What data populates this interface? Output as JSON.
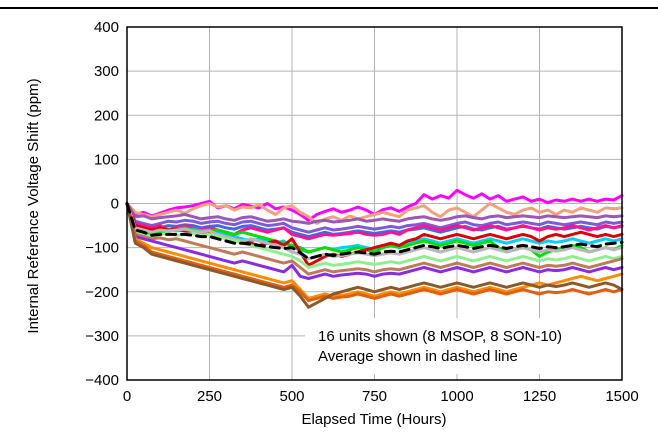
{
  "chart_data": {
    "type": "line",
    "title": "",
    "xlabel": "Elapsed Time (Hours)",
    "ylabel": "Internal Reference Voltage Shift (ppm)",
    "xlim": [
      0,
      1500
    ],
    "ylim": [
      -400,
      400
    ],
    "xticks": [
      0,
      250,
      500,
      750,
      1000,
      1250,
      1500
    ],
    "yticks": [
      -400,
      -300,
      -200,
      -100,
      0,
      100,
      200,
      300,
      400
    ],
    "xtick_labels": [
      "0",
      "250",
      "500",
      "750",
      "1000",
      "1250",
      "1500"
    ],
    "ytick_labels": [
      "−400",
      "−300",
      "−200",
      "−100",
      "0",
      "100",
      "200",
      "300",
      "400"
    ],
    "grid": true,
    "annotations": [
      "16 units shown (8 MSOP, 8 SON-10)",
      "Average shown in dashed line"
    ],
    "x": [
      0,
      25,
      50,
      75,
      100,
      125,
      150,
      175,
      200,
      225,
      250,
      275,
      300,
      325,
      350,
      375,
      400,
      425,
      450,
      475,
      500,
      525,
      550,
      575,
      600,
      625,
      650,
      675,
      700,
      725,
      750,
      775,
      800,
      825,
      850,
      875,
      900,
      925,
      950,
      975,
      1000,
      1025,
      1050,
      1075,
      1100,
      1125,
      1150,
      1175,
      1200,
      1225,
      1250,
      1275,
      1300,
      1325,
      1350,
      1375,
      1400,
      1425,
      1450,
      1475,
      1500
    ],
    "series": [
      {
        "color": "#ff00ff",
        "style": "solid",
        "values": [
          0,
          -25,
          -20,
          -28,
          -22,
          -15,
          -10,
          -8,
          -5,
          0,
          5,
          -10,
          -5,
          -12,
          -2,
          -6,
          -10,
          0,
          -12,
          -8,
          -15,
          -25,
          -38,
          -25,
          -18,
          -12,
          -20,
          -15,
          -8,
          -15,
          -25,
          -14,
          -10,
          -18,
          -8,
          0,
          20,
          10,
          18,
          12,
          30,
          20,
          12,
          22,
          10,
          18,
          5,
          10,
          15,
          5,
          10,
          2,
          8,
          5,
          10,
          5,
          10,
          5,
          10,
          8,
          18
        ]
      },
      {
        "color": "#f4a07e",
        "style": "solid",
        "values": [
          0,
          -20,
          -25,
          -30,
          -25,
          -20,
          -15,
          -22,
          -12,
          -5,
          0,
          -8,
          -5,
          -15,
          -8,
          -10,
          -2,
          -15,
          -25,
          -10,
          -5,
          -20,
          -30,
          -45,
          -35,
          -30,
          -38,
          -28,
          -35,
          -30,
          -25,
          -20,
          -25,
          -30,
          -15,
          -10,
          -5,
          -20,
          -30,
          -15,
          -10,
          -20,
          -30,
          -15,
          0,
          -10,
          -20,
          -25,
          -15,
          -10,
          -20,
          -15,
          -25,
          -15,
          -20,
          -10,
          -15,
          -20,
          -10,
          -12,
          -10
        ]
      },
      {
        "color": "#9b59b6",
        "style": "solid",
        "values": [
          0,
          -30,
          -28,
          -35,
          -32,
          -30,
          -28,
          -25,
          -30,
          -35,
          -32,
          -30,
          -35,
          -38,
          -32,
          -30,
          -35,
          -40,
          -38,
          -35,
          -40,
          -42,
          -45,
          -40,
          -38,
          -42,
          -40,
          -38,
          -35,
          -40,
          -38,
          -35,
          -38,
          -40,
          -35,
          -32,
          -30,
          -35,
          -38,
          -35,
          -30,
          -28,
          -32,
          -35,
          -30,
          -28,
          -32,
          -30,
          -28,
          -30,
          -32,
          -28,
          -30,
          -32,
          -30,
          -28,
          -30,
          -32,
          -28,
          -30,
          -28
        ]
      },
      {
        "color": "#7b5cd6",
        "style": "solid",
        "values": [
          0,
          -40,
          -45,
          -50,
          -45,
          -40,
          -42,
          -38,
          -40,
          -45,
          -42,
          -40,
          -45,
          -48,
          -42,
          -40,
          -45,
          -50,
          -48,
          -45,
          -55,
          -60,
          -65,
          -60,
          -55,
          -60,
          -58,
          -55,
          -52,
          -55,
          -58,
          -55,
          -52,
          -55,
          -50,
          -48,
          -45,
          -50,
          -55,
          -50,
          -45,
          -42,
          -48,
          -50,
          -45,
          -42,
          -48,
          -45,
          -42,
          -45,
          -48,
          -42,
          -45,
          -48,
          -45,
          -42,
          -45,
          -48,
          -42,
          -45,
          -42
        ]
      },
      {
        "color": "#4169e1",
        "style": "solid",
        "values": [
          0,
          -50,
          -55,
          -60,
          -55,
          -50,
          -52,
          -48,
          -50,
          -55,
          -52,
          -50,
          -55,
          -58,
          -52,
          -50,
          -55,
          -60,
          -58,
          -55,
          -65,
          -70,
          -75,
          -70,
          -65,
          -70,
          -68,
          -65,
          -62,
          -65,
          -68,
          -65,
          -62,
          -65,
          -60,
          -58,
          -55,
          -60,
          -65,
          -60,
          -55,
          -52,
          -58,
          -60,
          -55,
          -52,
          -58,
          -55,
          -52,
          -55,
          -58,
          -52,
          -55,
          -58,
          -55,
          -52,
          -55,
          -58,
          -52,
          -55,
          -52
        ]
      },
      {
        "color": "#ff1493",
        "style": "solid",
        "values": [
          0,
          -45,
          -50,
          -55,
          -50,
          -60,
          -55,
          -50,
          -55,
          -60,
          -55,
          -60,
          -65,
          -70,
          -60,
          -55,
          -60,
          -65,
          -60,
          -55,
          -70,
          -75,
          -80,
          -75,
          -70,
          -72,
          -70,
          -68,
          -65,
          -70,
          -72,
          -70,
          -65,
          -70,
          -60,
          -55,
          -50,
          -55,
          -60,
          -55,
          -50,
          -55,
          -60,
          -55,
          -50,
          -55,
          -60,
          -55,
          -50,
          -55,
          -60,
          -55,
          -58,
          -55,
          -50,
          -55,
          -60,
          -55,
          -50,
          -55,
          -50
        ]
      },
      {
        "color": "#00cfff",
        "style": "solid",
        "values": [
          0,
          -55,
          -60,
          -65,
          -60,
          -58,
          -62,
          -60,
          -58,
          -62,
          -60,
          -65,
          -70,
          -75,
          -80,
          -85,
          -80,
          -85,
          -90,
          -85,
          -100,
          -105,
          -110,
          -105,
          -100,
          -105,
          -100,
          -98,
          -95,
          -100,
          -105,
          -100,
          -95,
          -100,
          -90,
          -85,
          -80,
          -85,
          -90,
          -85,
          -80,
          -85,
          -90,
          -85,
          -80,
          -85,
          -90,
          -85,
          -80,
          -85,
          -90,
          -85,
          -88,
          -85,
          -80,
          -85,
          -90,
          -85,
          -80,
          -85,
          -80
        ]
      },
      {
        "color": "#00e000",
        "style": "solid",
        "values": [
          0,
          -60,
          -65,
          -70,
          -65,
          -60,
          -58,
          -55,
          -60,
          -65,
          -62,
          -60,
          -65,
          -70,
          -65,
          -70,
          -75,
          -80,
          -85,
          -90,
          -95,
          -100,
          -110,
          -105,
          -100,
          -105,
          -110,
          -105,
          -100,
          -105,
          -110,
          -100,
          -95,
          -100,
          -95,
          -90,
          -85,
          -90,
          -95,
          -90,
          -85,
          -90,
          -95,
          -90,
          -85,
          -100,
          -110,
          -105,
          -100,
          -105,
          -120,
          -110,
          -105,
          -100,
          -95,
          -100,
          -110,
          -105,
          -100,
          -105,
          -95
        ]
      },
      {
        "color": "#dd0000",
        "style": "solid",
        "values": [
          0,
          -50,
          -55,
          -60,
          -55,
          -60,
          -58,
          -62,
          -65,
          -70,
          -68,
          -70,
          -75,
          -80,
          -85,
          -90,
          -95,
          -90,
          -85,
          -95,
          -80,
          -110,
          -140,
          -130,
          -120,
          -115,
          -120,
          -115,
          -110,
          -105,
          -100,
          -95,
          -90,
          -95,
          -85,
          -80,
          -70,
          -75,
          -80,
          -75,
          -70,
          -75,
          -80,
          -75,
          -70,
          -75,
          -80,
          -75,
          -70,
          -75,
          -85,
          -75,
          -70,
          -75,
          -70,
          -65,
          -70,
          -75,
          -70,
          -75,
          -70
        ]
      },
      {
        "color": "#b8b8b8",
        "style": "solid",
        "values": [
          0,
          -55,
          -60,
          -65,
          -60,
          -62,
          -60,
          -58,
          -62,
          -65,
          -62,
          -70,
          -75,
          -80,
          -85,
          -80,
          -85,
          -90,
          -95,
          -100,
          -110,
          -115,
          -125,
          -120,
          -115,
          -120,
          -118,
          -115,
          -112,
          -115,
          -118,
          -115,
          -112,
          -115,
          -110,
          -105,
          -100,
          -105,
          -110,
          -105,
          -100,
          -105,
          -110,
          -105,
          -100,
          -105,
          -110,
          -105,
          -100,
          -105,
          -110,
          -105,
          -108,
          -105,
          -100,
          -105,
          -110,
          -105,
          -100,
          -105,
          -100
        ]
      },
      {
        "color": "#90ee90",
        "style": "solid",
        "values": [
          0,
          -65,
          -70,
          -75,
          -70,
          -68,
          -72,
          -70,
          -68,
          -72,
          -70,
          -75,
          -80,
          -85,
          -90,
          -95,
          -100,
          -105,
          -110,
          -115,
          -120,
          -130,
          -145,
          -140,
          -135,
          -140,
          -138,
          -135,
          -132,
          -135,
          -138,
          -135,
          -132,
          -135,
          -130,
          -125,
          -120,
          -125,
          -130,
          -125,
          -120,
          -125,
          -130,
          -125,
          -120,
          -125,
          -130,
          -125,
          -120,
          -125,
          -130,
          -125,
          -128,
          -125,
          -120,
          -125,
          -130,
          -125,
          -120,
          -125,
          -120
        ]
      },
      {
        "color": "#c07a5a",
        "style": "solid",
        "values": [
          0,
          -70,
          -75,
          -80,
          -78,
          -82,
          -80,
          -85,
          -90,
          -95,
          -100,
          -105,
          -110,
          -115,
          -110,
          -115,
          -120,
          -125,
          -130,
          -135,
          -130,
          -145,
          -160,
          -155,
          -150,
          -155,
          -152,
          -150,
          -148,
          -150,
          -155,
          -150,
          -148,
          -150,
          -145,
          -140,
          -135,
          -140,
          -145,
          -140,
          -135,
          -140,
          -145,
          -140,
          -135,
          -140,
          -145,
          -140,
          -135,
          -140,
          -145,
          -140,
          -142,
          -140,
          -135,
          -140,
          -145,
          -140,
          -135,
          -130,
          -125
        ]
      },
      {
        "color": "#8a2be2",
        "style": "solid",
        "values": [
          0,
          -75,
          -80,
          -85,
          -90,
          -95,
          -100,
          -105,
          -110,
          -115,
          -120,
          -125,
          -130,
          -135,
          -130,
          -135,
          -140,
          -145,
          -150,
          -155,
          -140,
          -165,
          -170,
          -165,
          -160,
          -165,
          -162,
          -160,
          -158,
          -160,
          -165,
          -160,
          -158,
          -160,
          -155,
          -150,
          -145,
          -150,
          -155,
          -150,
          -145,
          -150,
          -155,
          -150,
          -145,
          -150,
          -155,
          -150,
          -145,
          -150,
          -155,
          -150,
          -152,
          -150,
          -145,
          -150,
          -155,
          -150,
          -145,
          -150,
          -145
        ]
      },
      {
        "color": "#ff8c00",
        "style": "solid",
        "values": [
          0,
          -80,
          -90,
          -100,
          -105,
          -110,
          -115,
          -120,
          -125,
          -130,
          -135,
          -140,
          -145,
          -150,
          -155,
          -160,
          -165,
          -170,
          -175,
          -180,
          -175,
          -195,
          -215,
          -210,
          -205,
          -210,
          -208,
          -205,
          -200,
          -205,
          -210,
          -205,
          -200,
          -205,
          -200,
          -195,
          -190,
          -195,
          -200,
          -195,
          -190,
          -195,
          -200,
          -195,
          -190,
          -195,
          -200,
          -195,
          -190,
          -185,
          -180,
          -185,
          -180,
          -175,
          -170,
          -165,
          -170,
          -175,
          -170,
          -165,
          -160
        ]
      },
      {
        "color": "#e06010",
        "style": "solid",
        "values": [
          0,
          -85,
          -95,
          -110,
          -115,
          -120,
          -125,
          -130,
          -135,
          -140,
          -145,
          -150,
          -155,
          -160,
          -165,
          -170,
          -175,
          -180,
          -185,
          -190,
          -185,
          -200,
          -220,
          -215,
          -210,
          -215,
          -212,
          -210,
          -205,
          -210,
          -215,
          -210,
          -205,
          -210,
          -205,
          -200,
          -195,
          -200,
          -205,
          -200,
          -195,
          -200,
          -205,
          -200,
          -195,
          -200,
          -205,
          -200,
          -195,
          -200,
          -205,
          -200,
          -202,
          -200,
          -195,
          -200,
          -205,
          -200,
          -195,
          -200,
          -195
        ]
      },
      {
        "color": "#8b5a2b",
        "style": "solid",
        "values": [
          0,
          -90,
          -100,
          -115,
          -120,
          -125,
          -130,
          -135,
          -140,
          -145,
          -150,
          -155,
          -160,
          -165,
          -170,
          -175,
          -180,
          -185,
          -190,
          -195,
          -190,
          -210,
          -235,
          -225,
          -215,
          -205,
          -200,
          -195,
          -190,
          -195,
          -200,
          -195,
          -190,
          -195,
          -190,
          -185,
          -180,
          -185,
          -190,
          -185,
          -180,
          -185,
          -190,
          -185,
          -180,
          -185,
          -190,
          -185,
          -180,
          -185,
          -190,
          -185,
          -188,
          -185,
          -180,
          -185,
          -190,
          -185,
          -180,
          -185,
          -195
        ]
      },
      {
        "color": "#000000",
        "style": "dashed",
        "values": [
          0,
          -60,
          -65,
          -72,
          -70,
          -70,
          -70,
          -70,
          -72,
          -75,
          -75,
          -80,
          -85,
          -90,
          -90,
          -92,
          -95,
          -98,
          -100,
          -102,
          -100,
          -112,
          -125,
          -120,
          -115,
          -118,
          -115,
          -112,
          -110,
          -112,
          -115,
          -110,
          -108,
          -110,
          -105,
          -100,
          -95,
          -98,
          -102,
          -98,
          -95,
          -98,
          -102,
          -98,
          -95,
          -98,
          -102,
          -98,
          -95,
          -98,
          -102,
          -98,
          -100,
          -98,
          -95,
          -92,
          -95,
          -98,
          -92,
          -90,
          -88
        ]
      }
    ]
  }
}
